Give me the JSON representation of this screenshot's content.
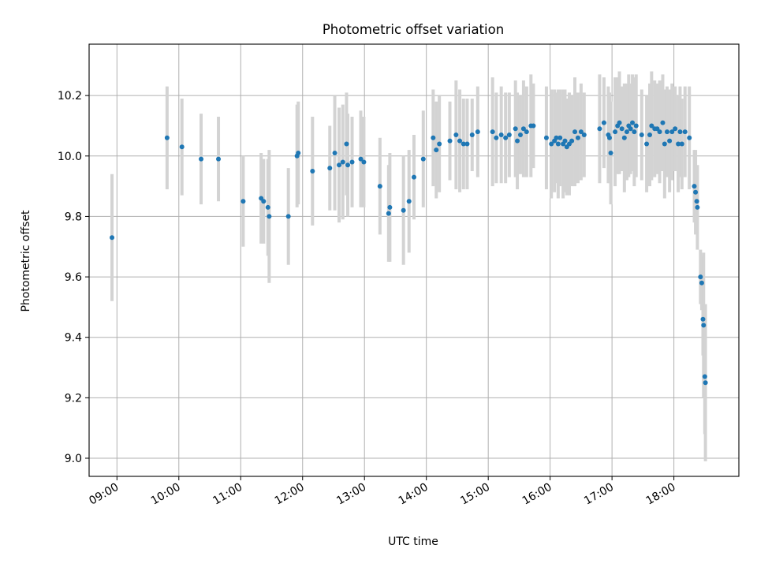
{
  "chart_data": {
    "type": "scatter",
    "title": "Photometric offset variation",
    "xlabel": "UTC time",
    "ylabel": "Photometric offset",
    "x_unit": "hours UTC",
    "xlim": [
      8.55,
      19.05
    ],
    "ylim": [
      8.94,
      10.37
    ],
    "x_ticks": [
      {
        "value": 9,
        "label": "09:00"
      },
      {
        "value": 10,
        "label": "10:00"
      },
      {
        "value": 11,
        "label": "11:00"
      },
      {
        "value": 12,
        "label": "12:00"
      },
      {
        "value": 13,
        "label": "13:00"
      },
      {
        "value": 14,
        "label": "14:00"
      },
      {
        "value": 15,
        "label": "15:00"
      },
      {
        "value": 16,
        "label": "16:00"
      },
      {
        "value": 17,
        "label": "17:00"
      },
      {
        "value": 18,
        "label": "18:00"
      }
    ],
    "y_ticks": [
      {
        "value": 9.0,
        "label": "9.0"
      },
      {
        "value": 9.2,
        "label": "9.2"
      },
      {
        "value": 9.4,
        "label": "9.4"
      },
      {
        "value": 9.6,
        "label": "9.6"
      },
      {
        "value": 9.8,
        "label": "9.8"
      },
      {
        "value": 10.0,
        "label": "10.0"
      },
      {
        "value": 10.2,
        "label": "10.2"
      }
    ],
    "grid": true,
    "marker_color": "#1f77b4",
    "errorbar_color": "#d3d3d3",
    "points": [
      [
        8.92,
        9.73,
        0.21
      ],
      [
        9.81,
        10.06,
        0.17
      ],
      [
        10.05,
        10.03,
        0.16
      ],
      [
        10.36,
        9.99,
        0.15
      ],
      [
        10.64,
        9.99,
        0.14
      ],
      [
        11.04,
        9.85,
        0.15
      ],
      [
        11.33,
        9.86,
        0.15
      ],
      [
        11.37,
        9.85,
        0.14
      ],
      [
        11.44,
        9.83,
        0.16
      ],
      [
        11.46,
        9.8,
        0.22
      ],
      [
        11.77,
        9.8,
        0.16
      ],
      [
        11.91,
        10.0,
        0.17
      ],
      [
        11.93,
        10.01,
        0.17
      ],
      [
        12.16,
        9.95,
        0.18
      ],
      [
        12.44,
        9.96,
        0.14
      ],
      [
        12.52,
        10.01,
        0.19
      ],
      [
        12.59,
        9.97,
        0.19
      ],
      [
        12.65,
        9.98,
        0.19
      ],
      [
        12.71,
        10.04,
        0.17
      ],
      [
        12.73,
        9.97,
        0.17
      ],
      [
        12.8,
        9.98,
        0.15
      ],
      [
        12.94,
        9.99,
        0.16
      ],
      [
        12.99,
        9.98,
        0.15
      ],
      [
        13.25,
        9.9,
        0.16
      ],
      [
        13.39,
        9.81,
        0.16
      ],
      [
        13.41,
        9.83,
        0.18
      ],
      [
        13.63,
        9.82,
        0.18
      ],
      [
        13.72,
        9.85,
        0.17
      ],
      [
        13.8,
        9.93,
        0.14
      ],
      [
        13.95,
        9.99,
        0.16
      ],
      [
        14.11,
        10.06,
        0.16
      ],
      [
        14.16,
        10.02,
        0.16
      ],
      [
        14.21,
        10.04,
        0.16
      ],
      [
        14.38,
        10.05,
        0.13
      ],
      [
        14.48,
        10.07,
        0.18
      ],
      [
        14.54,
        10.05,
        0.17
      ],
      [
        14.6,
        10.04,
        0.15
      ],
      [
        14.66,
        10.04,
        0.15
      ],
      [
        14.74,
        10.07,
        0.12
      ],
      [
        14.83,
        10.08,
        0.15
      ],
      [
        15.07,
        10.08,
        0.18
      ],
      [
        15.13,
        10.06,
        0.15
      ],
      [
        15.21,
        10.07,
        0.16
      ],
      [
        15.28,
        10.06,
        0.15
      ],
      [
        15.34,
        10.07,
        0.14
      ],
      [
        15.44,
        10.09,
        0.16
      ],
      [
        15.47,
        10.05,
        0.16
      ],
      [
        15.52,
        10.07,
        0.13
      ],
      [
        15.57,
        10.09,
        0.16
      ],
      [
        15.62,
        10.08,
        0.15
      ],
      [
        15.69,
        10.1,
        0.17
      ],
      [
        15.73,
        10.1,
        0.14
      ],
      [
        15.94,
        10.06,
        0.17
      ],
      [
        16.02,
        10.04,
        0.18
      ],
      [
        16.07,
        10.05,
        0.17
      ],
      [
        16.1,
        10.06,
        0.15
      ],
      [
        16.13,
        10.04,
        0.18
      ],
      [
        16.16,
        10.06,
        0.16
      ],
      [
        16.21,
        10.04,
        0.18
      ],
      [
        16.24,
        10.05,
        0.17
      ],
      [
        16.27,
        10.03,
        0.16
      ],
      [
        16.31,
        10.04,
        0.17
      ],
      [
        16.35,
        10.05,
        0.15
      ],
      [
        16.4,
        10.08,
        0.18
      ],
      [
        16.45,
        10.06,
        0.15
      ],
      [
        16.5,
        10.08,
        0.16
      ],
      [
        16.55,
        10.07,
        0.14
      ],
      [
        16.8,
        10.09,
        0.18
      ],
      [
        16.87,
        10.11,
        0.15
      ],
      [
        16.94,
        10.07,
        0.16
      ],
      [
        16.96,
        10.06,
        0.15
      ],
      [
        16.98,
        10.01,
        0.17
      ],
      [
        17.05,
        10.08,
        0.18
      ],
      [
        17.09,
        10.1,
        0.16
      ],
      [
        17.12,
        10.11,
        0.17
      ],
      [
        17.16,
        10.09,
        0.14
      ],
      [
        17.2,
        10.06,
        0.18
      ],
      [
        17.24,
        10.08,
        0.16
      ],
      [
        17.27,
        10.1,
        0.17
      ],
      [
        17.3,
        10.09,
        0.15
      ],
      [
        17.33,
        10.11,
        0.16
      ],
      [
        17.36,
        10.08,
        0.18
      ],
      [
        17.39,
        10.1,
        0.17
      ],
      [
        17.48,
        10.07,
        0.15
      ],
      [
        17.56,
        10.04,
        0.16
      ],
      [
        17.61,
        10.07,
        0.17
      ],
      [
        17.64,
        10.1,
        0.18
      ],
      [
        17.69,
        10.09,
        0.16
      ],
      [
        17.73,
        10.09,
        0.15
      ],
      [
        17.77,
        10.08,
        0.17
      ],
      [
        17.82,
        10.11,
        0.16
      ],
      [
        17.85,
        10.04,
        0.18
      ],
      [
        17.89,
        10.08,
        0.15
      ],
      [
        17.93,
        10.05,
        0.17
      ],
      [
        17.97,
        10.08,
        0.16
      ],
      [
        18.02,
        10.09,
        0.14
      ],
      [
        18.07,
        10.04,
        0.16
      ],
      [
        18.1,
        10.08,
        0.15
      ],
      [
        18.13,
        10.04,
        0.15
      ],
      [
        18.18,
        10.08,
        0.15
      ],
      [
        18.25,
        10.06,
        0.17
      ],
      [
        18.33,
        9.9,
        0.12
      ],
      [
        18.35,
        9.88,
        0.14
      ],
      [
        18.37,
        9.85,
        0.1
      ],
      [
        18.38,
        9.83,
        0.14
      ],
      [
        18.43,
        9.6,
        0.09
      ],
      [
        18.45,
        9.58,
        0.09
      ],
      [
        18.47,
        9.46,
        0.12
      ],
      [
        18.48,
        9.44,
        0.24
      ],
      [
        18.5,
        9.27,
        0.19
      ],
      [
        18.51,
        9.25,
        0.26
      ]
    ]
  }
}
